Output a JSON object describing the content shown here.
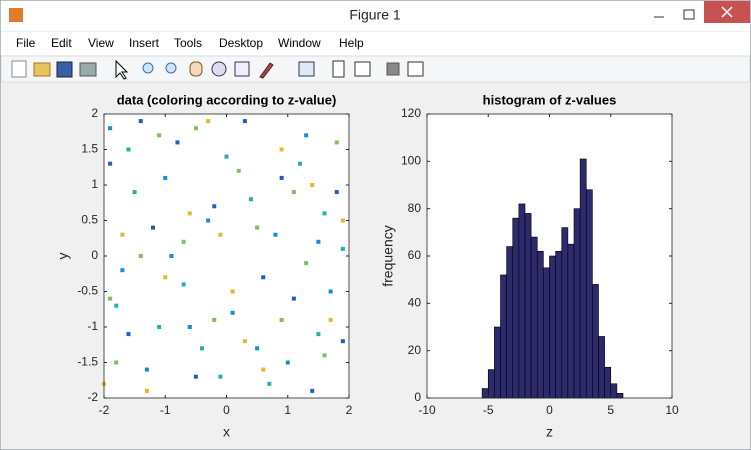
{
  "window": {
    "title": "Figure 1"
  },
  "menu": [
    "File",
    "Edit",
    "View",
    "Insert",
    "Tools",
    "Desktop",
    "Window",
    "Help"
  ],
  "chart_data": [
    {
      "type": "scatter",
      "title": "data (coloring according to z-value)",
      "xlabel": "x",
      "ylabel": "y",
      "xlim": [
        -2,
        2
      ],
      "ylim": [
        -2,
        2
      ],
      "xticks": [
        -2,
        -1,
        0,
        1,
        2
      ],
      "yticks": [
        -2,
        -1.5,
        -1,
        -0.5,
        0,
        0.5,
        1,
        1.5,
        2
      ],
      "series": [
        {
          "color": "#1a5fc4",
          "x": [
            -1.9,
            -1.2,
            -0.5,
            0.3,
            1.1,
            1.8,
            -1.6,
            -0.8,
            0.6,
            1.4,
            -0.2,
            1.9,
            -1.4,
            0.9
          ],
          "values": [
            1.3,
            0.4,
            -1.7,
            1.9,
            -0.6,
            0.9,
            -1.1,
            1.6,
            -0.3,
            -1.9,
            0.7,
            -1.2,
            1.9,
            1.1
          ]
        },
        {
          "color": "#0d8fd8",
          "x": [
            -1.7,
            -1.0,
            -0.3,
            0.5,
            1.3,
            1.7,
            -1.9,
            -0.6,
            0.8,
            1.5,
            -1.3,
            0.1,
            1.0,
            -0.9
          ],
          "values": [
            -0.2,
            1.1,
            0.5,
            -1.3,
            1.7,
            -0.5,
            1.8,
            -1.0,
            0.3,
            0.2,
            -1.6,
            -0.8,
            -1.5,
            0.0
          ]
        },
        {
          "color": "#20b2aa",
          "x": [
            -1.5,
            -0.7,
            0.0,
            0.7,
            1.6,
            -1.8,
            -0.4,
            1.2,
            1.9,
            -1.1,
            0.4,
            -0.1,
            1.5,
            -1.6
          ],
          "values": [
            0.9,
            -0.4,
            1.4,
            -1.8,
            0.6,
            -0.7,
            -1.3,
            1.3,
            0.1,
            -1.0,
            0.8,
            -1.7,
            -1.1,
            1.5
          ]
        },
        {
          "color": "#7fbf5f",
          "x": [
            -1.8,
            -1.1,
            -0.2,
            0.5,
            1.3,
            1.8,
            -0.7,
            0.9,
            -1.4,
            0.2,
            1.6,
            -0.5,
            1.1,
            -1.9
          ],
          "values": [
            -1.5,
            1.7,
            -0.9,
            0.4,
            -0.1,
            1.6,
            0.2,
            -0.9,
            0.0,
            1.2,
            -1.4,
            1.8,
            0.9,
            -0.6
          ]
        },
        {
          "color": "#e8b82a",
          "x": [
            -1.3,
            -0.6,
            0.1,
            0.9,
            1.7,
            -1.7,
            -0.3,
            0.6,
            1.4,
            -1.0,
            0.3,
            1.9,
            -0.1,
            -2.0
          ],
          "values": [
            -1.9,
            0.6,
            -0.5,
            1.5,
            -0.9,
            0.3,
            1.9,
            -1.6,
            1.0,
            -0.3,
            -1.2,
            0.5,
            0.3,
            -1.8
          ]
        }
      ]
    },
    {
      "type": "histogram",
      "title": "histogram of z-values",
      "xlabel": "z",
      "ylabel": "frequency",
      "xlim": [
        -10,
        10
      ],
      "ylim": [
        0,
        120
      ],
      "xticks": [
        -10,
        -5,
        0,
        5,
        10
      ],
      "yticks": [
        0,
        20,
        40,
        60,
        80,
        100,
        120
      ],
      "color": "#2d2b6e",
      "bins": [
        -5.5,
        -5,
        -4.5,
        -4,
        -3.5,
        -3,
        -2.5,
        -2,
        -1.5,
        -1,
        -0.5,
        0,
        0.5,
        1,
        1.5,
        2,
        2.5,
        3,
        3.5,
        4,
        4.5,
        5,
        5.5,
        6
      ],
      "values": [
        4,
        12,
        30,
        52,
        64,
        76,
        82,
        78,
        68,
        62,
        55,
        60,
        62,
        72,
        65,
        80,
        101,
        88,
        48,
        26,
        13,
        6,
        2
      ]
    }
  ]
}
